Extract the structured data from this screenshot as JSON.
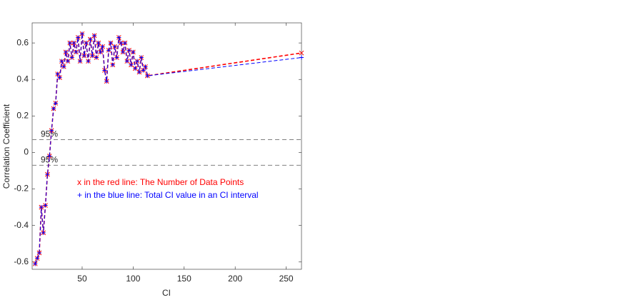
{
  "chart_data": {
    "type": "line",
    "xlabel": "CI",
    "ylabel": "Correlation Coefficient",
    "xlim": [
      1,
      265
    ],
    "ylim": [
      -0.64,
      0.71
    ],
    "xticks": [
      50,
      100,
      150,
      200,
      250
    ],
    "yticks": [
      -0.6,
      -0.4,
      -0.2,
      0,
      0.2,
      0.4,
      0.6
    ],
    "x": [
      4,
      6,
      8,
      10,
      12,
      14,
      16,
      18,
      20,
      22,
      24,
      26,
      28,
      30,
      32,
      34,
      36,
      38,
      40,
      42,
      44,
      46,
      48,
      50,
      52,
      54,
      56,
      58,
      60,
      62,
      64,
      66,
      68,
      70,
      72,
      74,
      76,
      78,
      80,
      82,
      84,
      86,
      88,
      90,
      92,
      94,
      96,
      98,
      100,
      102,
      104,
      106,
      108,
      110,
      112,
      114,
      265
    ],
    "series": [
      {
        "name": "x in the red line:  The Number of Data Points",
        "color": "#ff0000",
        "marker": "x",
        "values": [
          -0.61,
          -0.58,
          -0.55,
          -0.3,
          -0.44,
          -0.29,
          -0.12,
          -0.02,
          0.12,
          0.24,
          0.27,
          0.43,
          0.41,
          0.5,
          0.47,
          0.55,
          0.5,
          0.6,
          0.52,
          0.6,
          0.55,
          0.63,
          0.5,
          0.65,
          0.53,
          0.6,
          0.5,
          0.62,
          0.53,
          0.64,
          0.52,
          0.6,
          0.55,
          0.58,
          0.45,
          0.39,
          0.56,
          0.6,
          0.48,
          0.58,
          0.52,
          0.63,
          0.6,
          0.55,
          0.6,
          0.5,
          0.56,
          0.48,
          0.55,
          0.46,
          0.5,
          0.44,
          0.52,
          0.45,
          0.47,
          0.42,
          0.545
        ]
      },
      {
        "name": "+ in the blue line: Total CI value in an CI interval",
        "color": "#0000ff",
        "marker": "+",
        "values": [
          -0.61,
          -0.58,
          -0.55,
          -0.3,
          -0.44,
          -0.29,
          -0.12,
          -0.02,
          0.12,
          0.24,
          0.27,
          0.43,
          0.41,
          0.5,
          0.47,
          0.55,
          0.5,
          0.6,
          0.52,
          0.6,
          0.55,
          0.63,
          0.5,
          0.65,
          0.53,
          0.6,
          0.5,
          0.62,
          0.53,
          0.64,
          0.52,
          0.6,
          0.55,
          0.58,
          0.45,
          0.39,
          0.56,
          0.6,
          0.48,
          0.58,
          0.52,
          0.63,
          0.6,
          0.55,
          0.6,
          0.5,
          0.56,
          0.48,
          0.55,
          0.46,
          0.5,
          0.44,
          0.52,
          0.45,
          0.47,
          0.42,
          0.52
        ]
      }
    ],
    "ref_lines": [
      {
        "value": 0.07,
        "label": "95%"
      },
      {
        "value": -0.07,
        "label": "95%"
      }
    ]
  }
}
